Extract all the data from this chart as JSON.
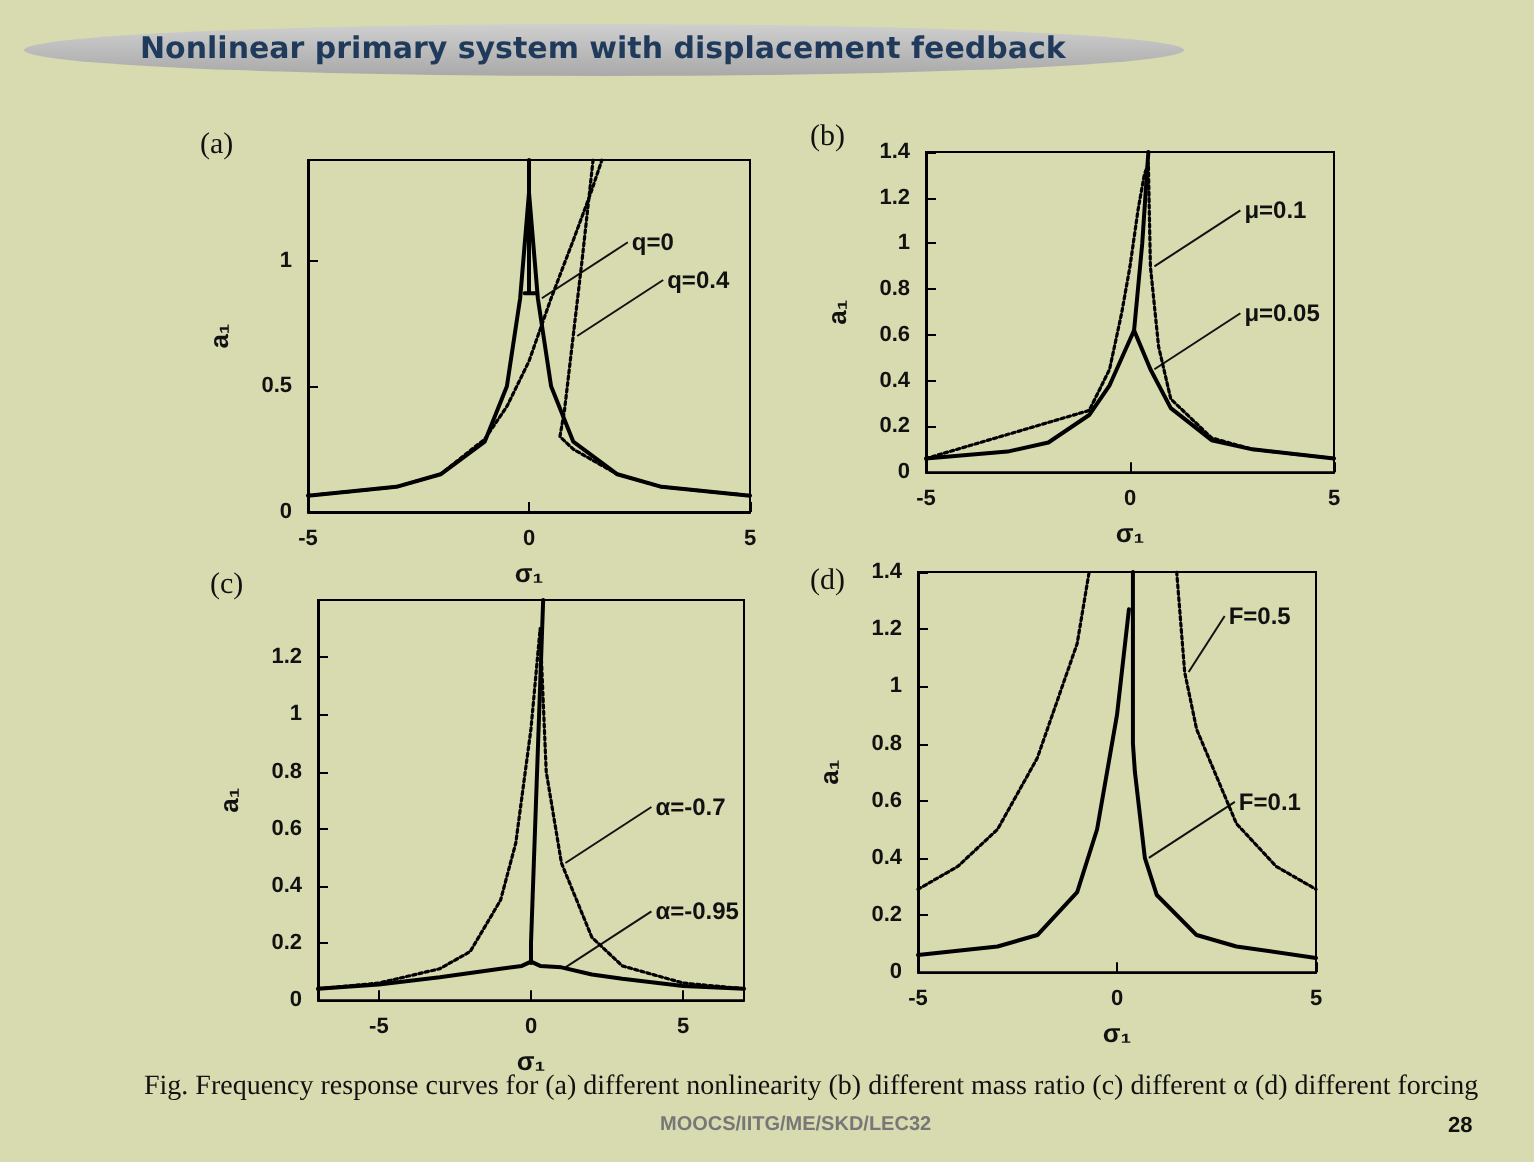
{
  "chart_data": [
    {
      "type": "other",
      "title": "Nonlinear primary system with displacement feedback"
    },
    {
      "type": "line",
      "title": "(a)",
      "xlabel": "σ₁",
      "ylabel": "a₁",
      "xlim": [
        -5,
        5
      ],
      "ylim": [
        0,
        1.4
      ],
      "xticks": [
        -5,
        0,
        5
      ],
      "yticks": [
        0,
        0.5,
        1
      ],
      "marker": "none",
      "grid": false,
      "series": [
        {
          "color": "#000000",
          "line_style": "solid",
          "x": [
            -5,
            -3,
            -2,
            -1,
            -0.5,
            -0.2,
            0,
            0.2,
            0.5,
            1,
            2,
            3,
            5
          ],
          "values": [
            0.065,
            0.1,
            0.15,
            0.28,
            0.5,
            0.85,
            1.27,
            0.85,
            0.5,
            0.28,
            0.15,
            0.1,
            0.065
          ]
        },
        {
          "color": "#000000",
          "line_style": "solid",
          "x": [
            -0.1,
            0.15,
            0,
            0,
            0
          ],
          "values": [
            0.87,
            0.87,
            0.87,
            1.27,
            1.4
          ]
        },
        {
          "color": "#000000",
          "line_style": "dotted",
          "x": [
            -5,
            -3,
            -2,
            -1,
            -0.5,
            0,
            0.5,
            1,
            1.4,
            1.65
          ],
          "values": [
            0.065,
            0.1,
            0.15,
            0.29,
            0.42,
            0.6,
            0.85,
            1.08,
            1.27,
            1.4
          ]
        },
        {
          "color": "#000000",
          "line_style": "dotted",
          "x": [
            1.45,
            1.2,
            1,
            0.8,
            0.7,
            1,
            2,
            3,
            5
          ],
          "values": [
            1.4,
            1,
            0.7,
            0.4,
            0.3,
            0.25,
            0.15,
            0.1,
            0.065
          ]
        }
      ],
      "annotations": [
        {
          "text": "q=0",
          "x": 0.2,
          "y": 0.85
        },
        {
          "text": "q=0.4",
          "x": 1,
          "y": 0.7
        }
      ]
    },
    {
      "type": "line",
      "title": "(b)",
      "xlabel": "σ₁",
      "ylabel": "a₁",
      "xlim": [
        -5,
        5
      ],
      "ylim": [
        0,
        1.4
      ],
      "xticks": [
        -5,
        0,
        5
      ],
      "yticks": [
        0,
        0.2,
        0.4,
        0.6,
        0.8,
        1,
        1.2,
        1.4
      ],
      "marker": "none",
      "grid": false,
      "series": [
        {
          "color": "#000000",
          "line_style": "solid",
          "x": [
            -5,
            -3,
            -2,
            -1,
            -0.5,
            0,
            0.1,
            0.5,
            1,
            2,
            3,
            5
          ],
          "values": [
            0.06,
            0.09,
            0.13,
            0.25,
            0.38,
            0.58,
            0.62,
            0.45,
            0.28,
            0.14,
            0.1,
            0.06
          ]
        },
        {
          "color": "#000000",
          "line_style": "solid",
          "x": [
            0.1,
            0.3,
            0.45
          ],
          "values": [
            0.62,
            1,
            1.4
          ]
        },
        {
          "color": "#000000",
          "line_style": "dotted",
          "x": [
            -5,
            -1,
            -0.5,
            -0.2,
            0,
            0.2,
            0.35,
            0.45,
            0.5,
            0.7,
            1,
            2,
            3,
            5
          ],
          "values": [
            0.06,
            0.27,
            0.45,
            0.7,
            0.9,
            1.15,
            1.3,
            1.35,
            0.9,
            0.55,
            0.32,
            0.15,
            0.1,
            0.06
          ]
        }
      ],
      "annotations": [
        {
          "text": "μ=0.1",
          "x": 0.5,
          "y": 0.9
        },
        {
          "text": "μ=0.05",
          "x": 0.5,
          "y": 0.45
        }
      ]
    },
    {
      "type": "line",
      "title": "(c)",
      "xlabel": "σ₁",
      "ylabel": "a₁",
      "xlim": [
        -7,
        7
      ],
      "ylim": [
        0,
        1.4
      ],
      "xticks": [
        -5,
        0,
        5
      ],
      "yticks": [
        0,
        0.2,
        0.4,
        0.6,
        0.8,
        1,
        1.2
      ],
      "marker": "none",
      "grid": false,
      "series": [
        {
          "color": "#000000",
          "line_style": "dotted",
          "x": [
            -7,
            -5,
            -3,
            -2,
            -1,
            -0.5,
            0,
            0.3,
            0.5,
            1,
            2,
            3,
            5,
            7
          ],
          "values": [
            0.04,
            0.06,
            0.11,
            0.17,
            0.35,
            0.55,
            0.95,
            1.3,
            0.8,
            0.48,
            0.22,
            0.12,
            0.06,
            0.04
          ]
        },
        {
          "color": "#000000",
          "line_style": "solid",
          "x": [
            -7,
            -5,
            -3,
            -1,
            -0.3,
            0,
            0.3,
            1,
            2,
            3,
            5,
            7
          ],
          "values": [
            0.04,
            0.055,
            0.08,
            0.11,
            0.12,
            0.135,
            0.12,
            0.115,
            0.09,
            0.075,
            0.05,
            0.04
          ]
        },
        {
          "color": "#000000",
          "line_style": "solid",
          "x": [
            0,
            0,
            0.4
          ],
          "values": [
            0.13,
            0.2,
            1.4
          ]
        }
      ],
      "annotations": [
        {
          "text": "α=-0.7",
          "x": 1,
          "y": 0.48
        },
        {
          "text": "α=-0.95",
          "x": 1,
          "y": 0.115
        }
      ]
    },
    {
      "type": "line",
      "title": "(d)",
      "xlabel": "σ₁",
      "ylabel": "a₁",
      "xlim": [
        -5,
        5
      ],
      "ylim": [
        0,
        1.4
      ],
      "xticks": [
        -5,
        0,
        5
      ],
      "yticks": [
        0,
        0.2,
        0.4,
        0.6,
        0.8,
        1,
        1.2,
        1.4
      ],
      "marker": "none",
      "grid": false,
      "series": [
        {
          "color": "#000000",
          "line_style": "solid",
          "x": [
            -5,
            -3,
            -2,
            -1,
            -0.5,
            0,
            0.3
          ],
          "values": [
            0.06,
            0.09,
            0.13,
            0.28,
            0.5,
            0.9,
            1.27
          ]
        },
        {
          "color": "#000000",
          "line_style": "solid",
          "x": [
            0.4,
            0.4,
            0.45,
            0.7,
            1,
            2,
            3,
            5
          ],
          "values": [
            1.4,
            0.8,
            0.7,
            0.4,
            0.27,
            0.13,
            0.09,
            0.05
          ]
        },
        {
          "color": "#000000",
          "line_style": "dotted",
          "x": [
            -5,
            -4,
            -3,
            -2,
            -1.5,
            -1,
            -0.7
          ],
          "values": [
            0.29,
            0.37,
            0.5,
            0.75,
            0.95,
            1.15,
            1.4
          ]
        },
        {
          "color": "#000000",
          "line_style": "dotted",
          "x": [
            1.5,
            1.7,
            2,
            3,
            4,
            5
          ],
          "values": [
            1.4,
            1.05,
            0.85,
            0.52,
            0.37,
            0.29
          ]
        }
      ],
      "annotations": [
        {
          "text": "F=0.5",
          "x": 1.7,
          "y": 1.05
        },
        {
          "text": "F=0.1",
          "x": 0.7,
          "y": 0.4
        }
      ]
    },
    {
      "type": "other",
      "annotations": [
        "Fig. Frequency response curves for (a) different nonlinearity (b) different mass ratio (c) different α (d) different forcing",
        "MOOCS/IITG/ME/SKD/LEC32",
        "28"
      ]
    }
  ]
}
